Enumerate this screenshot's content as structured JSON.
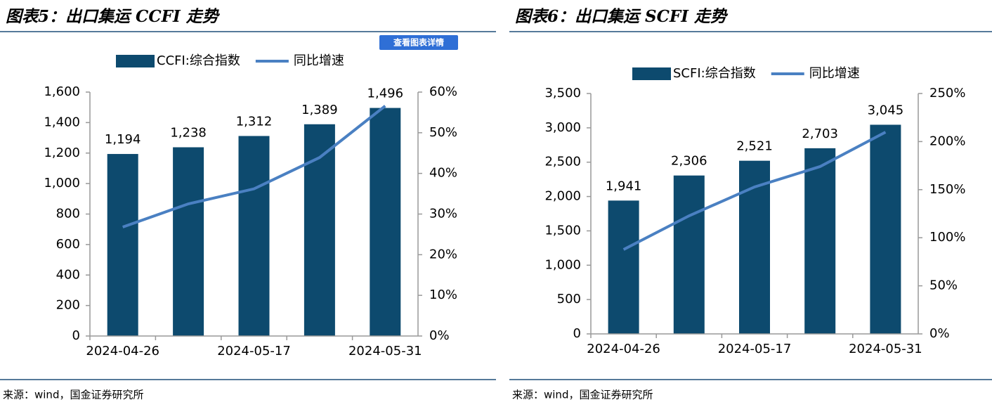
{
  "button": "查看图表详情",
  "chart_data": [
    {
      "type": "combo",
      "title": "图表5：出口集运 CCFI 走势",
      "source": "来源：wind，国金证券研究所",
      "categories": [
        "2024-04-26",
        null,
        "2024-05-17",
        null,
        "2024-05-31"
      ],
      "series": [
        {
          "name": "CCFI:综合指数",
          "type": "bar",
          "color": "#0d4a6e",
          "values": [
            1194,
            1238,
            1312,
            1389,
            1496
          ],
          "value_labels": [
            "1,194",
            "1,238",
            "1,312",
            "1,389",
            "1,496"
          ]
        },
        {
          "name": "同比增速",
          "type": "line",
          "axis": "y2",
          "color": "#4a80c2",
          "values": [
            26.8,
            32.5,
            36.2,
            43.9,
            56.6
          ]
        }
      ],
      "ylim": [
        0,
        1600
      ],
      "yticks": [
        0,
        200,
        400,
        600,
        800,
        {
          "value": 1000,
          "label": "1,000"
        },
        {
          "value": 1200,
          "label": "1,200"
        },
        {
          "value": 1400,
          "label": "1,400"
        },
        {
          "value": 1600,
          "label": "1,600"
        }
      ],
      "y2lim": [
        0,
        60
      ],
      "y2ticks": [
        {
          "value": 0,
          "label": "0%"
        },
        {
          "value": 10,
          "label": "10%"
        },
        {
          "value": 20,
          "label": "20%"
        },
        {
          "value": 30,
          "label": "30%"
        },
        {
          "value": 40,
          "label": "40%"
        },
        {
          "value": 50,
          "label": "50%"
        },
        {
          "value": 60,
          "label": "60%"
        }
      ],
      "legend": "top"
    },
    {
      "type": "combo",
      "title": "图表6：出口集运 SCFI 走势",
      "source": "来源：wind，国金证券研究所",
      "categories": [
        "2024-04-26",
        null,
        "2024-05-17",
        null,
        "2024-05-31"
      ],
      "series": [
        {
          "name": "SCFI:综合指数",
          "type": "bar",
          "color": "#0d4a6e",
          "values": [
            1941,
            2306,
            2521,
            2703,
            3045
          ],
          "value_labels": [
            "1,941",
            "2,306",
            "2,521",
            "2,703",
            "3,045"
          ]
        },
        {
          "name": "同比增速",
          "type": "line",
          "axis": "y2",
          "color": "#4a80c2",
          "values": [
            87.7,
            122.8,
            152.8,
            174.0,
            209.8
          ]
        }
      ],
      "ylim": [
        0,
        3500
      ],
      "yticks": [
        0,
        500,
        {
          "value": 1000,
          "label": "1,000"
        },
        {
          "value": 1500,
          "label": "1,500"
        },
        {
          "value": 2000,
          "label": "2,000"
        },
        {
          "value": 2500,
          "label": "2,500"
        },
        {
          "value": 3000,
          "label": "3,000"
        },
        {
          "value": 3500,
          "label": "3,500"
        }
      ],
      "y2lim": [
        0,
        250
      ],
      "y2ticks": [
        {
          "value": 0,
          "label": "0%"
        },
        {
          "value": 50,
          "label": "50%"
        },
        {
          "value": 100,
          "label": "100%"
        },
        {
          "value": 150,
          "label": "150%"
        },
        {
          "value": 200,
          "label": "200%"
        },
        {
          "value": 250,
          "label": "250%"
        }
      ],
      "legend": "top"
    }
  ]
}
